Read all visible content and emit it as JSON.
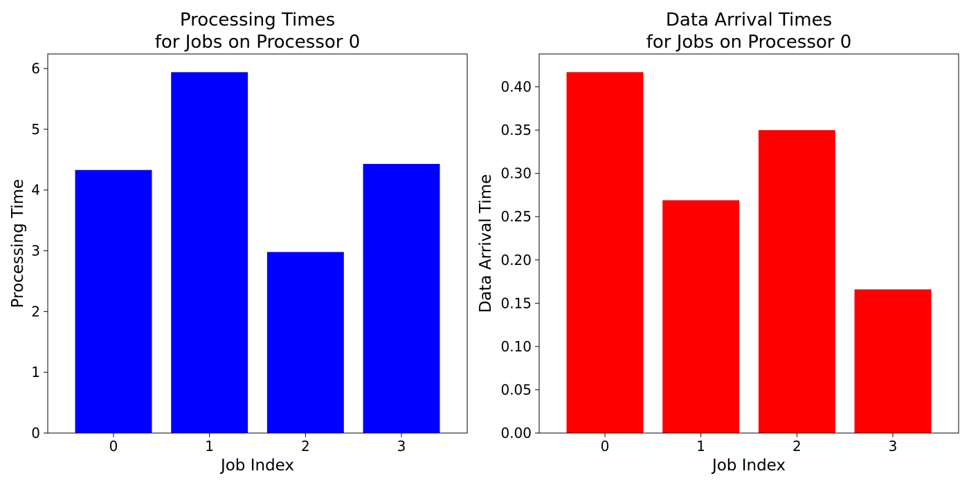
{
  "chart_data": [
    {
      "type": "bar",
      "title_lines": [
        "Processing Times",
        "for Jobs on Processor 0"
      ],
      "xlabel": "Job Index",
      "ylabel": "Processing Time",
      "categories": [
        "0",
        "1",
        "2",
        "3"
      ],
      "values": [
        4.33,
        5.94,
        2.98,
        4.43
      ],
      "ylim": [
        0,
        6.24
      ],
      "yticks": [
        0,
        1,
        2,
        3,
        4,
        5,
        6
      ],
      "ytick_labels": [
        "0",
        "1",
        "2",
        "3",
        "4",
        "5",
        "6"
      ],
      "bar_color": "#0000ff",
      "grid": false
    },
    {
      "type": "bar",
      "title_lines": [
        "Data Arrival Times",
        "for Jobs on Processor 0"
      ],
      "xlabel": "Job Index",
      "ylabel": "Data Arrival Time",
      "categories": [
        "0",
        "1",
        "2",
        "3"
      ],
      "values": [
        0.417,
        0.269,
        0.35,
        0.166
      ],
      "ylim": [
        0,
        0.438
      ],
      "yticks": [
        0.0,
        0.05,
        0.1,
        0.15,
        0.2,
        0.25,
        0.3,
        0.35,
        0.4
      ],
      "ytick_labels": [
        "0.00",
        "0.05",
        "0.10",
        "0.15",
        "0.20",
        "0.25",
        "0.30",
        "0.35",
        "0.40"
      ],
      "bar_color": "#ff0000",
      "grid": false
    }
  ]
}
